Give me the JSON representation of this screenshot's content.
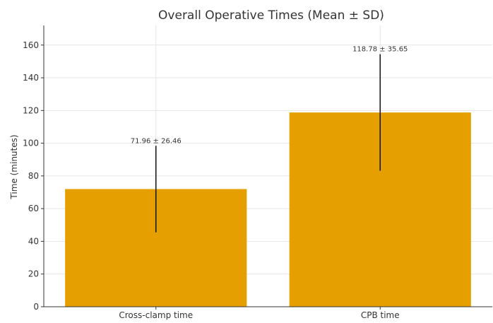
{
  "chart_data": {
    "type": "bar",
    "title": "Overall Operative Times (Mean ± SD)",
    "xlabel": "",
    "ylabel": "Time (minutes)",
    "ylim": [
      0,
      172
    ],
    "yticks": [
      0,
      20,
      40,
      60,
      80,
      100,
      120,
      140,
      160
    ],
    "categories": [
      "Cross-clamp time",
      "CPB time"
    ],
    "values": [
      71.96,
      118.78
    ],
    "errors": [
      26.46,
      35.65
    ],
    "data_labels": [
      "71.96 ± 26.46",
      "118.78 ± 35.65"
    ],
    "bar_color": "#E69F00",
    "error_color": "#1a1a1a",
    "grid": true
  }
}
